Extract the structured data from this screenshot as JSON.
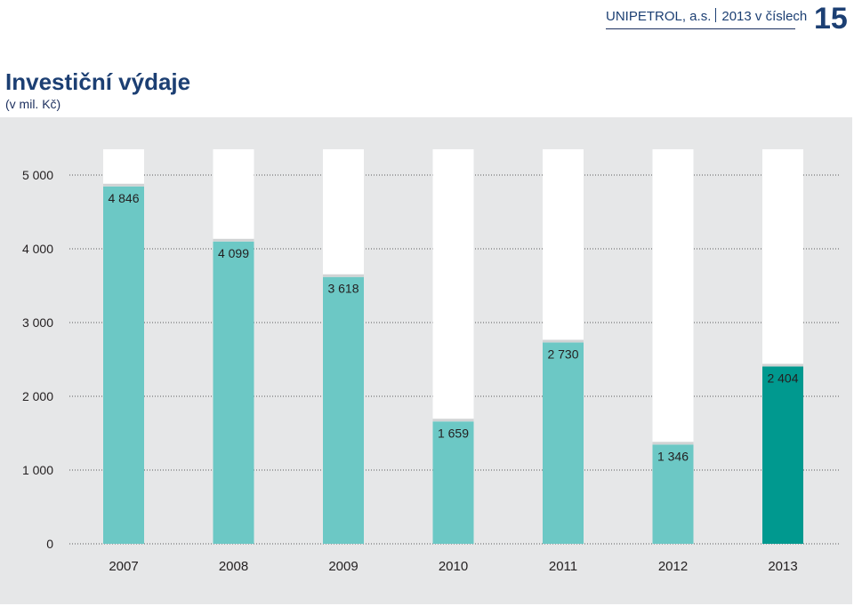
{
  "header": {
    "company": "UNIPETROL, a.s.",
    "report": "2013 v číslech",
    "page_number": "15"
  },
  "colors": {
    "bar": "#6cc8c5",
    "bar_highlight": "#00998f",
    "bar_track": "#ffffff",
    "panel": "#e6e7e8",
    "text_dark": "#1c3f73"
  },
  "chart_data": {
    "type": "bar",
    "title": "Investiční výdaje",
    "subtitle": "(v mil. Kč)",
    "categories": [
      "2007",
      "2008",
      "2009",
      "2010",
      "2011",
      "2012",
      "2013"
    ],
    "values": [
      4846,
      4099,
      3618,
      1659,
      2730,
      1346,
      2404
    ],
    "value_labels": [
      "4 846",
      "4 099",
      "3 618",
      "1 659",
      "2 730",
      "1 346",
      "2 404"
    ],
    "y_ticks": [
      0,
      1000,
      2000,
      3000,
      4000,
      5000
    ],
    "y_tick_labels": [
      "0",
      "1 000",
      "2 000",
      "3 000",
      "4 000",
      "5 000"
    ],
    "ylim": [
      0,
      5350
    ],
    "highlight_index": 6,
    "grid": "dotted",
    "legend": "none"
  }
}
